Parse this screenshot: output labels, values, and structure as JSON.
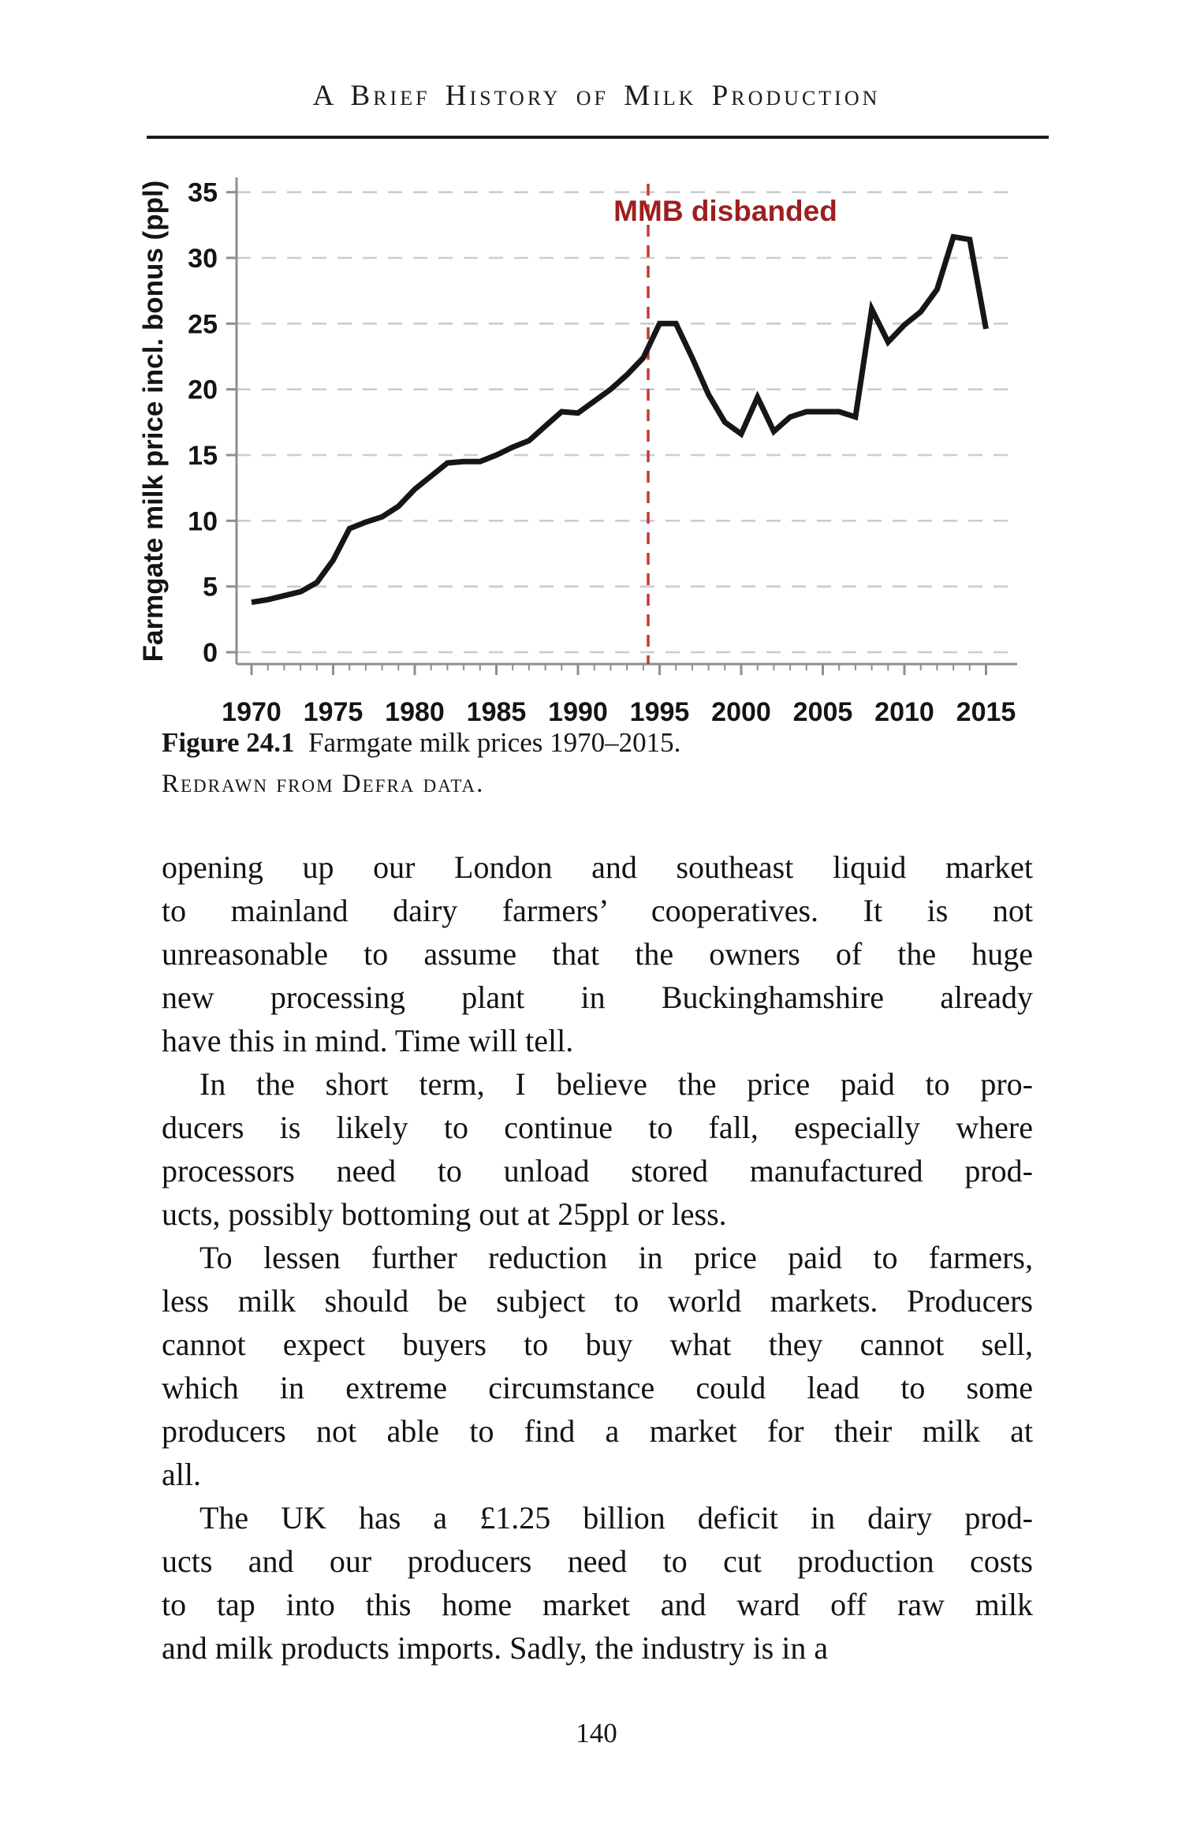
{
  "page": {
    "header": "A Brief History of Milk Production",
    "page_number": "140"
  },
  "figure": {
    "caption_label": "Figure 24.1",
    "caption_text": "Farmgate milk prices 1970–2015.",
    "caption_source": "Redrawn from Defra data."
  },
  "chart_data": {
    "type": "line",
    "title": "",
    "xlabel": "",
    "ylabel": "Farmgate milk price incl. bonus (ppl)",
    "x": [
      1970,
      1971,
      1972,
      1973,
      1974,
      1975,
      1976,
      1977,
      1978,
      1979,
      1980,
      1981,
      1982,
      1983,
      1984,
      1985,
      1986,
      1987,
      1988,
      1989,
      1990,
      1991,
      1992,
      1993,
      1994,
      1995,
      1996,
      1997,
      1998,
      1999,
      2000,
      2001,
      2002,
      2003,
      2004,
      2005,
      2006,
      2007,
      2008,
      2009,
      2010,
      2011,
      2012,
      2013,
      2014,
      2015
    ],
    "values": [
      3.8,
      4.0,
      4.3,
      4.6,
      5.3,
      7.0,
      9.4,
      9.9,
      10.3,
      11.1,
      12.4,
      13.4,
      14.4,
      14.5,
      14.5,
      15.0,
      15.6,
      16.1,
      17.2,
      18.3,
      18.2,
      19.1,
      20.0,
      21.1,
      22.4,
      25.0,
      25.0,
      22.4,
      19.6,
      17.5,
      16.6,
      19.4,
      16.8,
      17.9,
      18.3,
      18.3,
      18.3,
      17.9,
      26.1,
      23.6,
      24.9,
      25.9,
      27.6,
      31.6,
      31.4,
      24.6
    ],
    "ylim": [
      0,
      35
    ],
    "xlim": [
      1970,
      2015
    ],
    "y_ticks": [
      0,
      5,
      10,
      15,
      20,
      25,
      30,
      35
    ],
    "x_ticks": [
      1970,
      1975,
      1980,
      1985,
      1990,
      1995,
      2000,
      2005,
      2010,
      2015
    ],
    "grid": "horizontal-dashed",
    "legend": "none",
    "line_color": "#161616",
    "annotation": {
      "label": "MMB disbanded",
      "x": 1994.3,
      "text_color": "#9c1f1f",
      "line_color": "#c6392f",
      "style": "dashed-vertical-line"
    }
  },
  "colors": {
    "text": "#141414",
    "grid": "#cccccc",
    "axis": "#8e8e8e",
    "rule": "#1b1b1b"
  }
}
